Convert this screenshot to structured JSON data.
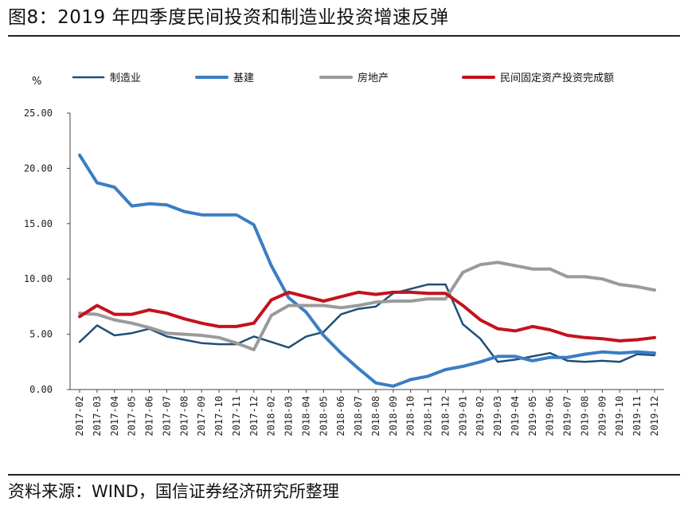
{
  "figure": {
    "title": "图8：2019 年四季度民间投资和制造业投资增速反弹",
    "source": "资料来源：WIND，国信证券经济研究所整理"
  },
  "chart_data": {
    "type": "line",
    "title": "",
    "xlabel": "",
    "ylabel": "%",
    "ylim": [
      0,
      25
    ],
    "yticks": [
      "0.00",
      "5.00",
      "10.00",
      "15.00",
      "20.00",
      "25.00"
    ],
    "ytick_values": [
      0,
      5,
      10,
      15,
      20,
      25
    ],
    "legend_position": "top",
    "categories": [
      "2017-02",
      "2017-03",
      "2017-04",
      "2017-05",
      "2017-06",
      "2017-07",
      "2017-08",
      "2017-09",
      "2017-10",
      "2017-11",
      "2017-12",
      "2018-02",
      "2018-03",
      "2018-04",
      "2018-05",
      "2018-06",
      "2018-07",
      "2018-08",
      "2018-09",
      "2018-10",
      "2018-11",
      "2018-12",
      "2019-01",
      "2019-02",
      "2019-03",
      "2019-04",
      "2019-05",
      "2019-06",
      "2019-07",
      "2019-08",
      "2019-09",
      "2019-10",
      "2019-11",
      "2019-12"
    ],
    "series": [
      {
        "name": "制造业",
        "color": "#1f4e79",
        "width": 2.5,
        "values": [
          4.3,
          5.8,
          4.9,
          5.1,
          5.5,
          4.8,
          4.5,
          4.2,
          4.1,
          4.1,
          4.8,
          4.3,
          3.8,
          4.8,
          5.2,
          6.8,
          7.3,
          7.5,
          8.7,
          9.1,
          9.5,
          9.5,
          5.9,
          4.6,
          2.5,
          2.7,
          3.0,
          3.3,
          2.6,
          2.5,
          2.6,
          2.5,
          3.2,
          3.1
        ]
      },
      {
        "name": "基建",
        "color": "#3b7dc4",
        "width": 4,
        "values": [
          21.2,
          18.7,
          18.3,
          16.6,
          16.8,
          16.7,
          16.1,
          15.8,
          15.8,
          15.8,
          14.9,
          11.2,
          8.3,
          7.0,
          4.9,
          3.3,
          1.9,
          0.6,
          0.3,
          0.9,
          1.2,
          1.8,
          2.1,
          2.5,
          3.0,
          3.0,
          2.6,
          2.9,
          2.9,
          3.2,
          3.4,
          3.3,
          3.4,
          3.3
        ]
      },
      {
        "name": "房地产",
        "color": "#9a9a9a",
        "width": 4,
        "values": [
          6.9,
          6.8,
          6.3,
          6.0,
          5.6,
          5.1,
          5.0,
          4.9,
          4.7,
          4.2,
          3.6,
          6.7,
          7.6,
          7.6,
          7.6,
          7.4,
          7.6,
          7.9,
          8.0,
          8.0,
          8.2,
          8.2,
          10.6,
          11.3,
          11.5,
          11.2,
          10.9,
          10.9,
          10.2,
          10.2,
          10.0,
          9.5,
          9.3,
          9.0
        ]
      },
      {
        "name": "民间固定资产投资完成额",
        "color": "#c3121e",
        "width": 4,
        "values": [
          6.6,
          7.6,
          6.8,
          6.8,
          7.2,
          6.9,
          6.4,
          6.0,
          5.7,
          5.7,
          6.0,
          8.1,
          8.8,
          8.4,
          8.0,
          8.4,
          8.8,
          8.6,
          8.8,
          8.8,
          8.7,
          8.7,
          7.6,
          6.3,
          5.5,
          5.3,
          5.7,
          5.4,
          4.9,
          4.7,
          4.6,
          4.4,
          4.5,
          4.7
        ]
      }
    ]
  }
}
